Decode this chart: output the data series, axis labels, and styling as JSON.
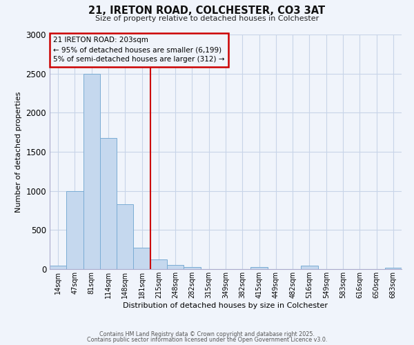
{
  "title": "21, IRETON ROAD, COLCHESTER, CO3 3AT",
  "subtitle": "Size of property relative to detached houses in Colchester",
  "xlabel": "Distribution of detached houses by size in Colchester",
  "ylabel": "Number of detached properties",
  "bar_labels": [
    "14sqm",
    "47sqm",
    "81sqm",
    "114sqm",
    "148sqm",
    "181sqm",
    "215sqm",
    "248sqm",
    "282sqm",
    "315sqm",
    "349sqm",
    "382sqm",
    "415sqm",
    "449sqm",
    "482sqm",
    "516sqm",
    "549sqm",
    "583sqm",
    "616sqm",
    "650sqm",
    "683sqm"
  ],
  "bar_values": [
    40,
    1000,
    2500,
    1680,
    830,
    270,
    120,
    50,
    30,
    0,
    0,
    0,
    30,
    0,
    0,
    40,
    0,
    0,
    0,
    0,
    18
  ],
  "bar_color": "#c5d8ee",
  "bar_edge_color": "#7aacd4",
  "ylim": [
    0,
    3000
  ],
  "yticks": [
    0,
    500,
    1000,
    1500,
    2000,
    2500,
    3000
  ],
  "property_line_bin": 6.0,
  "annotation_title": "21 IRETON ROAD: 203sqm",
  "annotation_line1": "← 95% of detached houses are smaller (6,199)",
  "annotation_line2": "5% of semi-detached houses are larger (312) →",
  "annotation_box_color": "#cc0000",
  "footer1": "Contains HM Land Registry data © Crown copyright and database right 2025.",
  "footer2": "Contains public sector information licensed under the Open Government Licence v3.0.",
  "bg_color": "#f0f4fb",
  "grid_color": "#c8d4e8"
}
